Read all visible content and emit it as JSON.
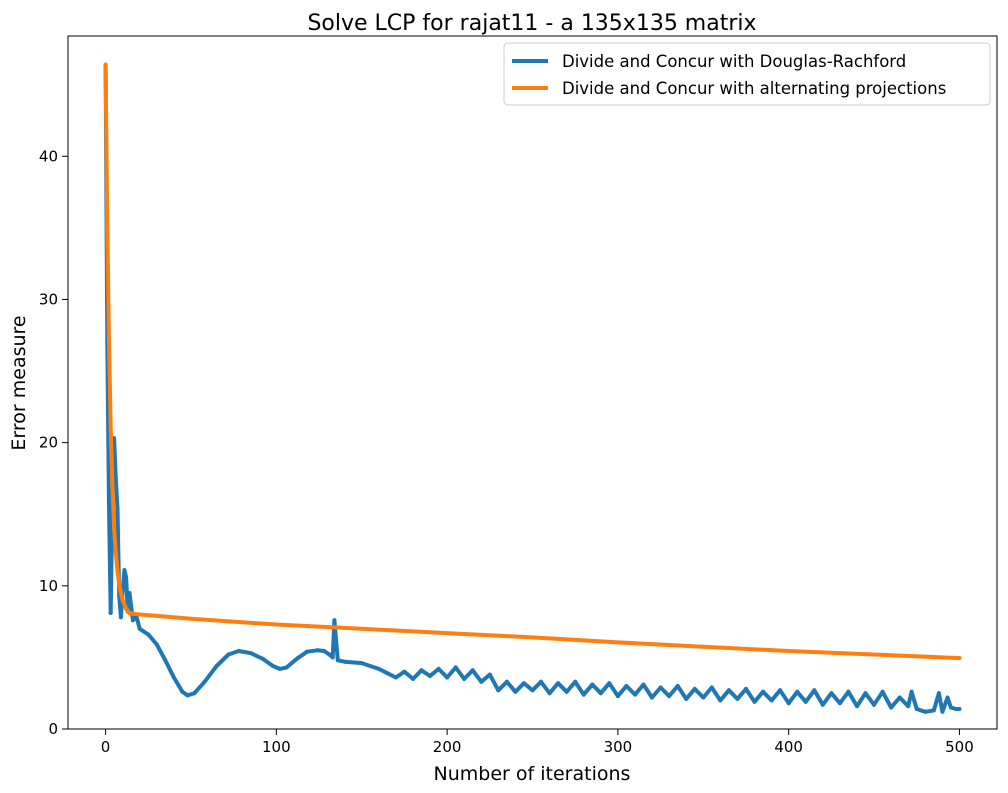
{
  "chart_data": {
    "type": "line",
    "title": "Solve LCP for rajat11 - a 135x135 matrix",
    "xlabel": "Number of iterations",
    "ylabel": "Error measure",
    "xlim": [
      -22,
      522
    ],
    "ylim": [
      0,
      48.4
    ],
    "xticks": [
      0,
      100,
      200,
      300,
      400,
      500
    ],
    "yticks": [
      0,
      10,
      20,
      30,
      40
    ],
    "grid": false,
    "legend_position": "top-right",
    "series": [
      {
        "name": "Divide and Concur with Douglas-Rachford",
        "color": "#1f77b4",
        "x": [
          0,
          1,
          2,
          3,
          4,
          5,
          6,
          7,
          8,
          9,
          10,
          11,
          12,
          13,
          14,
          16,
          18,
          20,
          25,
          30,
          35,
          40,
          45,
          48,
          52,
          58,
          65,
          72,
          78,
          85,
          92,
          98,
          102,
          106,
          112,
          118,
          124,
          128,
          131,
          133,
          134,
          136,
          140,
          150,
          160,
          165,
          170,
          175,
          180,
          185,
          190,
          195,
          200,
          205,
          210,
          215,
          220,
          225,
          230,
          235,
          240,
          245,
          250,
          255,
          260,
          265,
          270,
          275,
          280,
          285,
          290,
          295,
          300,
          305,
          310,
          315,
          320,
          325,
          330,
          335,
          340,
          345,
          350,
          355,
          360,
          365,
          370,
          375,
          380,
          385,
          390,
          395,
          400,
          405,
          410,
          415,
          420,
          425,
          430,
          435,
          440,
          445,
          450,
          455,
          460,
          465,
          470,
          472,
          475,
          480,
          485,
          488,
          490,
          493,
          495,
          498,
          500
        ],
        "y": [
          46.3,
          27.0,
          15.5,
          8.1,
          16.2,
          20.3,
          17.5,
          15.4,
          9.3,
          7.8,
          9.6,
          11.1,
          10.6,
          8.2,
          9.5,
          7.6,
          7.9,
          7.0,
          6.6,
          5.9,
          4.8,
          3.6,
          2.6,
          2.35,
          2.5,
          3.3,
          4.4,
          5.2,
          5.45,
          5.3,
          4.9,
          4.4,
          4.2,
          4.3,
          4.9,
          5.4,
          5.5,
          5.45,
          5.2,
          5.0,
          7.6,
          4.8,
          4.7,
          4.6,
          4.2,
          3.9,
          3.6,
          4.0,
          3.5,
          4.1,
          3.7,
          4.2,
          3.6,
          4.3,
          3.5,
          4.1,
          3.3,
          3.8,
          2.7,
          3.3,
          2.6,
          3.2,
          2.7,
          3.3,
          2.5,
          3.2,
          2.6,
          3.3,
          2.4,
          3.1,
          2.5,
          3.2,
          2.3,
          3.0,
          2.4,
          3.1,
          2.2,
          2.9,
          2.3,
          3.0,
          2.1,
          2.8,
          2.2,
          2.9,
          2.0,
          2.7,
          2.1,
          2.8,
          1.9,
          2.6,
          2.0,
          2.7,
          1.8,
          2.6,
          1.9,
          2.7,
          1.7,
          2.5,
          1.8,
          2.6,
          1.6,
          2.5,
          1.7,
          2.6,
          1.5,
          2.2,
          1.6,
          2.6,
          1.4,
          1.2,
          1.3,
          2.5,
          1.2,
          2.2,
          1.5,
          1.4,
          1.4
        ]
      },
      {
        "name": "Divide and Concur with alternating projections",
        "color": "#ff7f0e",
        "x": [
          0,
          1,
          2,
          3,
          4,
          5,
          6,
          7,
          8,
          9,
          10,
          11,
          12,
          13,
          14,
          16,
          20,
          30,
          50,
          100,
          150,
          200,
          250,
          300,
          350,
          400,
          450,
          500
        ],
        "y": [
          46.4,
          35.0,
          27.0,
          21.0,
          17.0,
          14.0,
          12.3,
          11.0,
          10.1,
          9.5,
          9.0,
          8.7,
          8.4,
          8.25,
          8.1,
          8.05,
          8.0,
          7.9,
          7.7,
          7.3,
          7.0,
          6.7,
          6.4,
          6.05,
          5.75,
          5.45,
          5.2,
          4.95
        ]
      }
    ]
  }
}
